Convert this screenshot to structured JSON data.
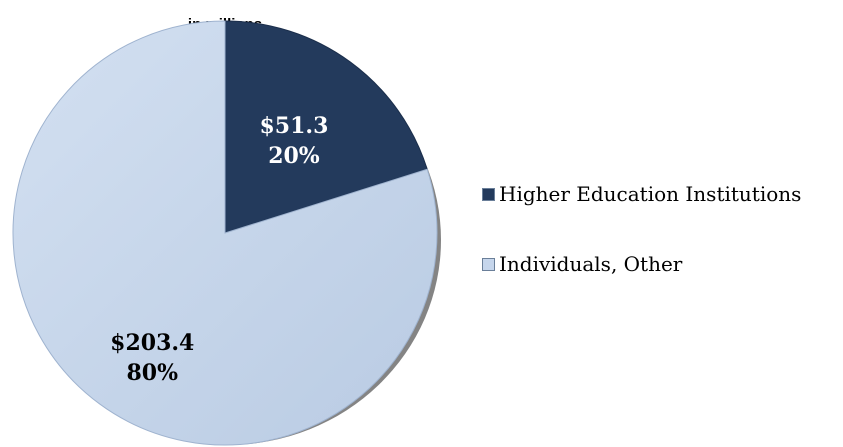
{
  "chart_data": {
    "type": "pie",
    "title": "",
    "subtitle": "in millions",
    "legend_position": "right",
    "slices": [
      {
        "name": "Higher Education Institutions",
        "value": 51.3,
        "value_label": "$51.3",
        "percent_label": "20%",
        "color": "#233a5c",
        "label_color": "#ffffff"
      },
      {
        "name": "Individuals, Other",
        "value": 203.4,
        "value_label": "$203.4",
        "percent_label": "80%",
        "color": "#c6d6ec",
        "label_color": "#000000"
      }
    ]
  }
}
